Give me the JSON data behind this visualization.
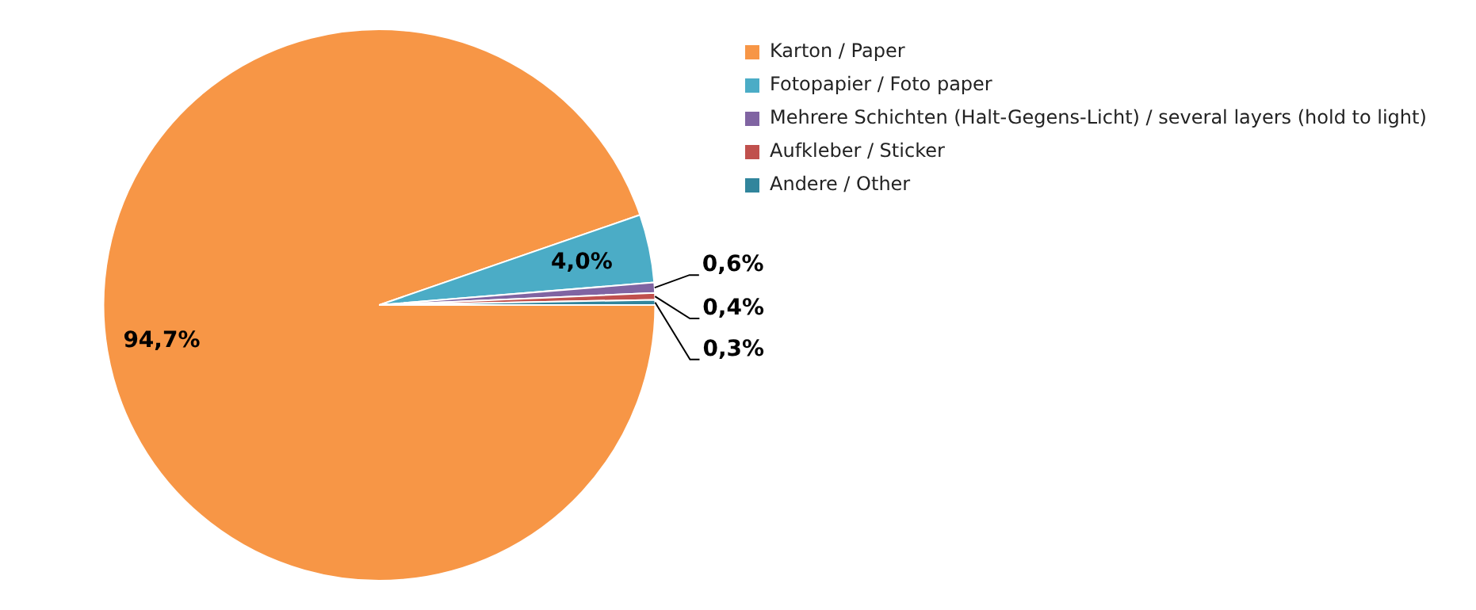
{
  "chart_data": {
    "type": "pie",
    "categories": [
      "Karton / Paper",
      "Fotopapier / Foto paper",
      "Mehrere Schichten (Halt-Gegens-Licht) / several layers (hold to light)",
      "Aufkleber / Sticker",
      "Andere / Other"
    ],
    "values": [
      94.7,
      4.0,
      0.6,
      0.4,
      0.3
    ],
    "colors": [
      "#f79646",
      "#4bacc6",
      "#8064a2",
      "#c0504d",
      "#31859c"
    ],
    "value_labels": [
      "94,7%",
      "4,0%",
      "0,6%",
      "0,4%",
      "0,3%"
    ],
    "legend": "top right"
  }
}
